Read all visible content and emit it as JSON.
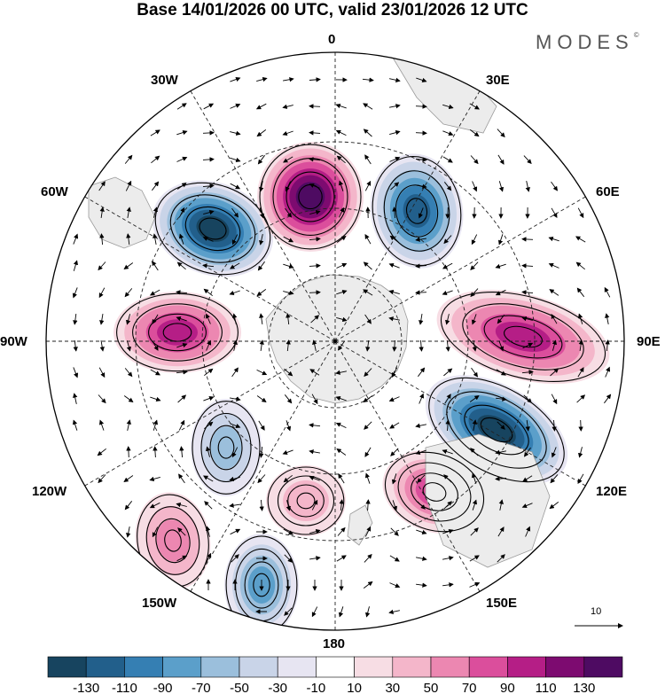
{
  "title": "Base 14/01/2026 00 UTC, valid 23/01/2026 12 UTC",
  "brand": "MODES",
  "brand_mark": "©",
  "longitude_labels": {
    "lon_0": "0",
    "lon_30e": "30E",
    "lon_60e": "60E",
    "lon_90e": "90E",
    "lon_120e": "120E",
    "lon_150e": "150E",
    "lon_180": "180",
    "lon_150w": "150W",
    "lon_120w": "120W",
    "lon_90w": "90W",
    "lon_60w": "60W",
    "lon_30w": "30W"
  },
  "vector_reference_label": "10",
  "colorbar": {
    "labels": [
      "-130",
      "-110",
      "-90",
      "-70",
      "-50",
      "-30",
      "-10",
      "10",
      "30",
      "50",
      "70",
      "90",
      "110",
      "130"
    ],
    "colors": [
      "#17445f",
      "#225f8b",
      "#357fb3",
      "#5b9fca",
      "#9bbfdc",
      "#c9d4e8",
      "#e7e5f2",
      "#ffffff",
      "#f7dde4",
      "#f4b6ca",
      "#ec87b1",
      "#db4e9c",
      "#b51e86",
      "#7d0b70",
      "#4e0b62"
    ]
  },
  "anomaly_centers": [
    {
      "name": "low-60w",
      "value": -130
    },
    {
      "name": "high-30w",
      "value": 130
    },
    {
      "name": "low-20e",
      "value": -110
    },
    {
      "name": "high-85e",
      "value": 90
    },
    {
      "name": "low-110e",
      "value": -130
    },
    {
      "name": "high-150e",
      "value": 70
    },
    {
      "name": "high-90w",
      "value": 90
    },
    {
      "name": "low-125w",
      "value": -50
    },
    {
      "name": "high-150w",
      "value": 50
    },
    {
      "name": "low-165w",
      "value": -70
    },
    {
      "name": "high-180",
      "value": 30
    }
  ]
}
